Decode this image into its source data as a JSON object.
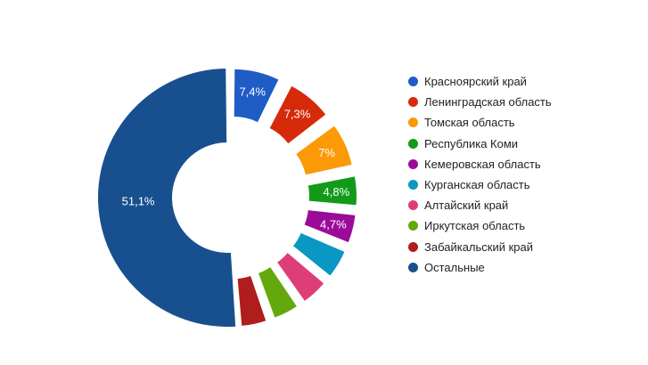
{
  "chart_data": {
    "type": "pie",
    "variant": "donut",
    "legend_position": "right",
    "slices": [
      {
        "label": "Красноярский край",
        "value": 7.4,
        "display": "7,4%",
        "color": "#1f5cc6"
      },
      {
        "label": "Ленинградская область",
        "value": 7.3,
        "display": "7,3%",
        "color": "#d52b0b"
      },
      {
        "label": "Томская область",
        "value": 7.0,
        "display": "7%",
        "color": "#fb9a06"
      },
      {
        "label": "Республика Коми",
        "value": 4.8,
        "display": "4,8%",
        "color": "#119b19"
      },
      {
        "label": "Кемеровская область",
        "value": 4.7,
        "display": "4,7%",
        "color": "#9a0b9a"
      },
      {
        "label": "Курганская область",
        "value": 4.7,
        "display": "",
        "color": "#0997c3"
      },
      {
        "label": "Алтайский край",
        "value": 4.4,
        "display": "",
        "color": "#dd3e78"
      },
      {
        "label": "Иркутская область",
        "value": 4.2,
        "display": "",
        "color": "#63a90c"
      },
      {
        "label": "Забайкальский край",
        "value": 4.2,
        "display": "",
        "color": "#b01d1d"
      },
      {
        "label": "Остальные",
        "value": 51.1,
        "display": "51,1%",
        "color": "#18508f"
      }
    ]
  }
}
